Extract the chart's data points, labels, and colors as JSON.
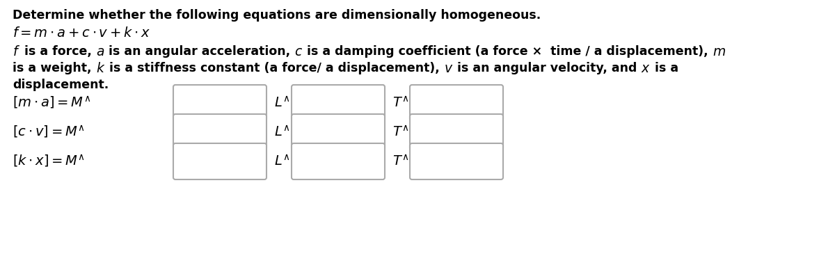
{
  "background_color": "#ffffff",
  "title_line": "Determine whether the following equations are dimensionally homogeneous.",
  "desc_line1": " is a force,  is an angular acceleration,  is a damping coefficient (a force ×  time / a displacement), ",
  "desc_line2": "is a weight,  is a stiffness constant (a force/ a displacement),  is an angular velocity, and  is a",
  "desc_line3": "displacement.",
  "box_facecolor": "#ffffff",
  "box_edgecolor": "#aaaaaa",
  "font_size_title": 12.5,
  "font_size_eq": 14,
  "font_size_desc": 12.5,
  "font_size_row": 14,
  "row_labels": [
    "[m \\cdot a] = M^{\\wedge}",
    "[c \\cdot v] = M^{\\wedge}",
    "[k \\cdot x] = M^{\\wedge}"
  ],
  "col1_labels": [
    "L^{\\wedge}",
    "L^{\\wedge}",
    "L^{\\wedge}"
  ],
  "col2_labels": [
    "T^{\\wedge}",
    "T^{\\wedge}",
    "T^{\\wedge}"
  ]
}
